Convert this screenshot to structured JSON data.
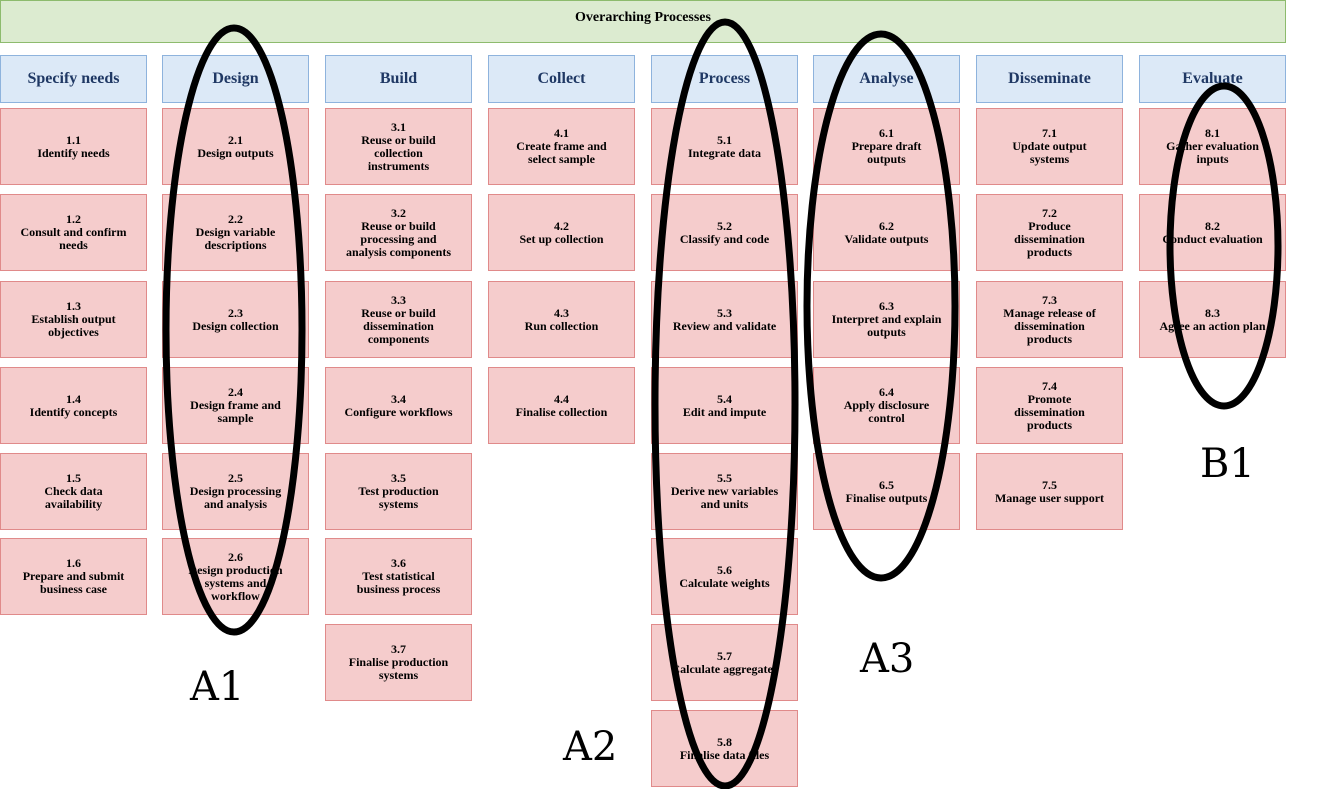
{
  "title": "Overarching Processes",
  "phases": [
    {
      "name": "Specify needs",
      "steps": [
        {
          "num": "1.1",
          "label": "Identify needs"
        },
        {
          "num": "1.2",
          "label": "Consult and confirm\nneeds"
        },
        {
          "num": "1.3",
          "label": "Establish output\nobjectives"
        },
        {
          "num": "1.4",
          "label": "Identify concepts"
        },
        {
          "num": "1.5",
          "label": "Check data\navailability"
        },
        {
          "num": "1.6",
          "label": "Prepare and submit\nbusiness case"
        }
      ]
    },
    {
      "name": "Design",
      "steps": [
        {
          "num": "2.1",
          "label": "Design outputs"
        },
        {
          "num": "2.2",
          "label": "Design variable\ndescriptions"
        },
        {
          "num": "2.3",
          "label": "Design collection"
        },
        {
          "num": "2.4",
          "label": "Design frame and\nsample"
        },
        {
          "num": "2.5",
          "label": "Design processing\nand analysis"
        },
        {
          "num": "2.6",
          "label": "Design production\nsystems and\nworkflow"
        }
      ]
    },
    {
      "name": "Build",
      "steps": [
        {
          "num": "3.1",
          "label": "Reuse or build\ncollection\ninstruments"
        },
        {
          "num": "3.2",
          "label": "Reuse or build\nprocessing and\nanalysis components"
        },
        {
          "num": "3.3",
          "label": "Reuse or build\ndissemination\ncomponents"
        },
        {
          "num": "3.4",
          "label": "Configure workflows"
        },
        {
          "num": "3.5",
          "label": "Test production\nsystems"
        },
        {
          "num": "3.6",
          "label": "Test statistical\nbusiness process"
        },
        {
          "num": "3.7",
          "label": "Finalise production\nsystems"
        }
      ]
    },
    {
      "name": "Collect",
      "steps": [
        {
          "num": "4.1",
          "label": "Create frame and\nselect sample"
        },
        {
          "num": "4.2",
          "label": "Set up collection"
        },
        {
          "num": "4.3",
          "label": "Run collection"
        },
        {
          "num": "4.4",
          "label": "Finalise collection"
        }
      ]
    },
    {
      "name": "Process",
      "steps": [
        {
          "num": "5.1",
          "label": "Integrate data"
        },
        {
          "num": "5.2",
          "label": "Classify and code"
        },
        {
          "num": "5.3",
          "label": "Review and validate"
        },
        {
          "num": "5.4",
          "label": "Edit and impute"
        },
        {
          "num": "5.5",
          "label": "Derive new variables\nand units"
        },
        {
          "num": "5.6",
          "label": "Calculate weights"
        },
        {
          "num": "5.7",
          "label": "Calculate aggregates"
        },
        {
          "num": "5.8",
          "label": "Finalise data files"
        }
      ]
    },
    {
      "name": "Analyse",
      "steps": [
        {
          "num": "6.1",
          "label": "Prepare draft\noutputs"
        },
        {
          "num": "6.2",
          "label": "Validate outputs"
        },
        {
          "num": "6.3",
          "label": "Interpret and explain\noutputs"
        },
        {
          "num": "6.4",
          "label": "Apply disclosure\ncontrol"
        },
        {
          "num": "6.5",
          "label": "Finalise outputs"
        }
      ]
    },
    {
      "name": "Disseminate",
      "steps": [
        {
          "num": "7.1",
          "label": "Update output\nsystems"
        },
        {
          "num": "7.2",
          "label": "Produce\ndissemination\nproducts"
        },
        {
          "num": "7.3",
          "label": "Manage release of\ndissemination\nproducts"
        },
        {
          "num": "7.4",
          "label": "Promote\ndissemination\nproducts"
        },
        {
          "num": "7.5",
          "label": "Manage user support"
        }
      ]
    },
    {
      "name": "Evaluate",
      "steps": [
        {
          "num": "8.1",
          "label": "Gather evaluation\ninputs"
        },
        {
          "num": "8.2",
          "label": "Conduct evaluation"
        },
        {
          "num": "8.3",
          "label": "Agree an action plan"
        }
      ]
    }
  ],
  "annotations": [
    {
      "label": "A1"
    },
    {
      "label": "A2"
    },
    {
      "label": "A3"
    },
    {
      "label": "B1"
    }
  ]
}
